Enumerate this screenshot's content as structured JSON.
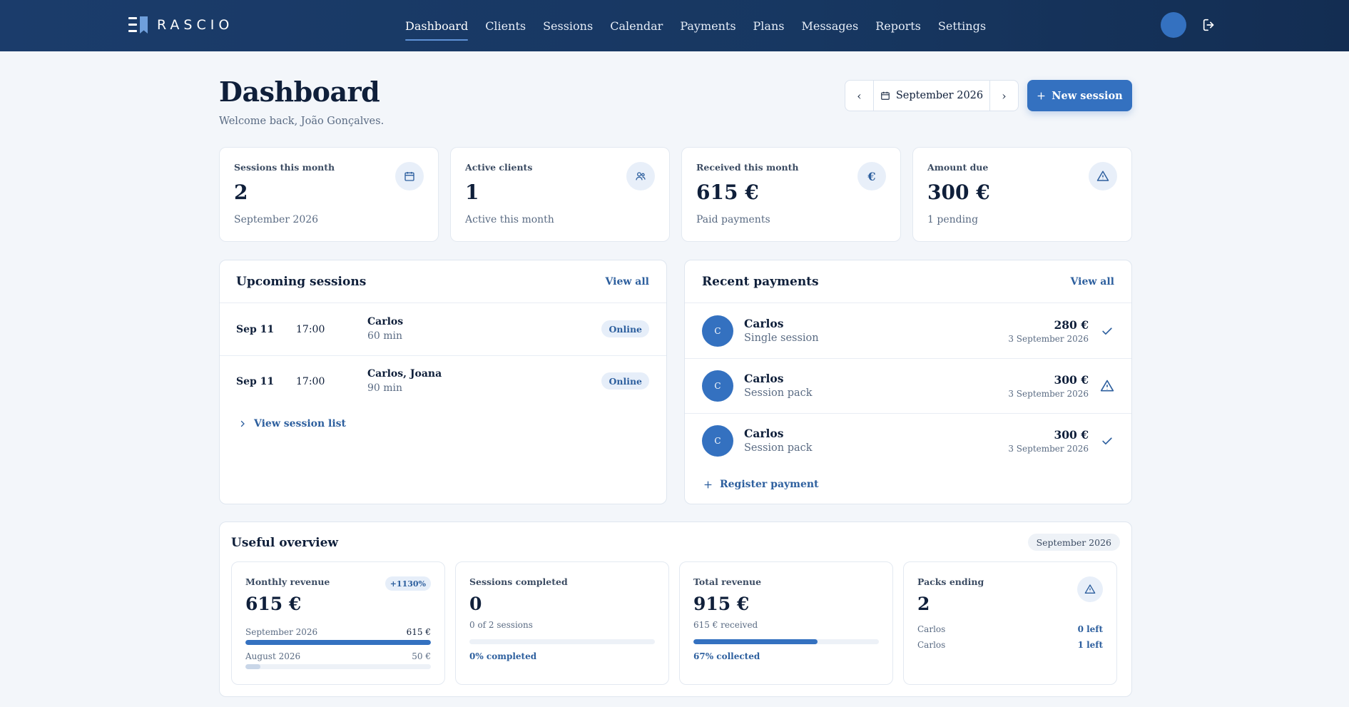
{
  "brand": {
    "name": "RASCIO"
  },
  "nav": [
    {
      "label": "Dashboard",
      "active": true
    },
    {
      "label": "Clients"
    },
    {
      "label": "Sessions"
    },
    {
      "label": "Calendar"
    },
    {
      "label": "Payments"
    },
    {
      "label": "Plans"
    },
    {
      "label": "Messages"
    },
    {
      "label": "Reports"
    },
    {
      "label": "Settings"
    }
  ],
  "header": {
    "title": "Dashboard",
    "welcome": "Welcome back, João Gonçalves.",
    "month": "September 2026",
    "new_session_label": "New session"
  },
  "stats": [
    {
      "label": "Sessions this month",
      "value": "2",
      "sub": "September 2026",
      "icon": "calendar-icon"
    },
    {
      "label": "Active clients",
      "value": "1",
      "sub": "Active this month",
      "icon": "users-icon"
    },
    {
      "label": "Received this month",
      "value": "615 €",
      "sub": "Paid payments",
      "icon": "euro-icon"
    },
    {
      "label": "Amount due",
      "value": "300 €",
      "sub": "1 pending",
      "icon": "warning-icon"
    }
  ],
  "upcoming": {
    "title": "Upcoming sessions",
    "view_all": "View all",
    "rows": [
      {
        "date": "Sep 11",
        "time": "17:00",
        "name": "Carlos",
        "duration": "60 min",
        "mode": "Online"
      },
      {
        "date": "Sep 11",
        "time": "17:00",
        "name": "Carlos, Joana",
        "duration": "90 min",
        "mode": "Online"
      }
    ],
    "view_list": "View session list"
  },
  "payments": {
    "title": "Recent payments",
    "view_all": "View all",
    "rows": [
      {
        "initial": "C",
        "name": "Carlos",
        "kind": "Single session",
        "amount": "280 €",
        "date": "3 September 2026",
        "status_icon": "check-icon"
      },
      {
        "initial": "C",
        "name": "Carlos",
        "kind": "Session pack",
        "amount": "300 €",
        "date": "3 September 2026",
        "status_icon": "warning-icon"
      },
      {
        "initial": "C",
        "name": "Carlos",
        "kind": "Session pack",
        "amount": "300 €",
        "date": "3 September 2026",
        "status_icon": "check-icon"
      }
    ],
    "register": "Register payment"
  },
  "overview": {
    "title": "Useful overview",
    "period": "September 2026",
    "monthly_revenue": {
      "label": "Monthly revenue",
      "change": "+1130%",
      "value": "615 €",
      "current": {
        "label": "September 2026",
        "amount": "615 €",
        "fraction": 1.0
      },
      "previous": {
        "label": "August 2026",
        "amount": "50 €",
        "fraction": 0.08
      }
    },
    "sessions_completed": {
      "label": "Sessions completed",
      "value": "0",
      "detail": "0 of 2 sessions",
      "fraction": 0,
      "footer": "0% completed"
    },
    "total_revenue": {
      "label": "Total revenue",
      "value": "915 €",
      "detail": "615 € received",
      "fraction": 0.67,
      "footer": "67% collected"
    },
    "packs_ending": {
      "label": "Packs ending",
      "value": "2",
      "items": [
        {
          "name": "Carlos",
          "left": "0 left"
        },
        {
          "name": "Carlos",
          "left": "1 left"
        }
      ]
    }
  },
  "colors": {
    "accent": "#3471c0",
    "navy": "#173761",
    "link": "#2d5f9e",
    "background": "#f3f6fa"
  }
}
